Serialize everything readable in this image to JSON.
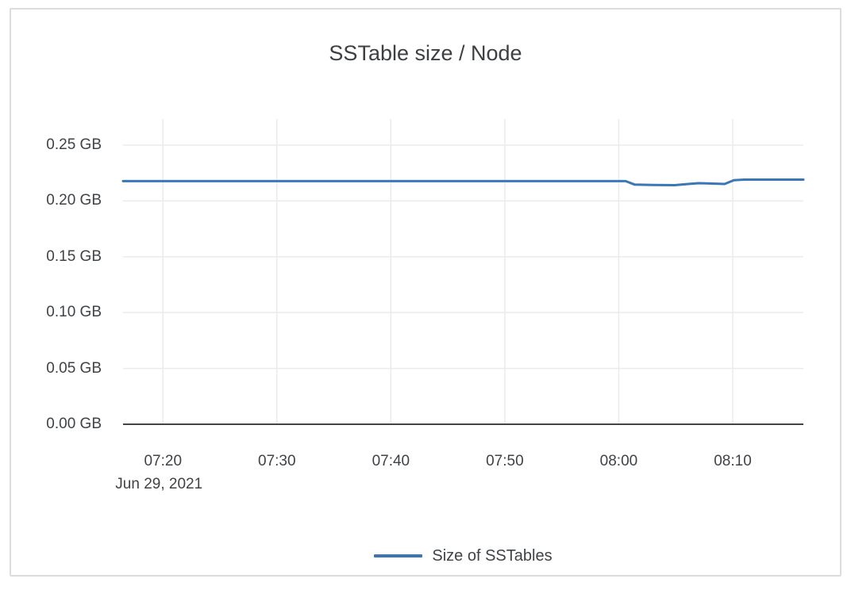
{
  "chart_data": {
    "type": "line",
    "title": "SSTable size / Node",
    "grid": true,
    "legend_position": "bottom-center",
    "x_axis": {
      "date_label": "Jun 29, 2021",
      "range_minutes": [
        436.5,
        496.2
      ],
      "ticks": [
        {
          "label": "07:20",
          "minutes": 440
        },
        {
          "label": "07:30",
          "minutes": 450
        },
        {
          "label": "07:40",
          "minutes": 460
        },
        {
          "label": "07:50",
          "minutes": 470
        },
        {
          "label": "08:00",
          "minutes": 480
        },
        {
          "label": "08:10",
          "minutes": 490
        }
      ]
    },
    "y_axis": {
      "unit": "GB",
      "range": [
        0,
        0.2734
      ],
      "ticks": [
        {
          "label": "0.00 GB",
          "value": 0.0
        },
        {
          "label": "0.05 GB",
          "value": 0.05
        },
        {
          "label": "0.10 GB",
          "value": 0.1
        },
        {
          "label": "0.15 GB",
          "value": 0.15
        },
        {
          "label": "0.20 GB",
          "value": 0.2
        },
        {
          "label": "0.25 GB",
          "value": 0.25
        }
      ]
    },
    "points_format": "[minutes_since_midnight, gigabytes]",
    "series": [
      {
        "name": "Size of SSTables",
        "color": "#3a77b4",
        "points": [
          [
            436.5,
            0.2177
          ],
          [
            450.0,
            0.2177
          ],
          [
            465.0,
            0.2177
          ],
          [
            480.6,
            0.2177
          ],
          [
            481.4,
            0.2146
          ],
          [
            483.0,
            0.2143
          ],
          [
            484.9,
            0.2141
          ],
          [
            486.0,
            0.2151
          ],
          [
            487.0,
            0.2159
          ],
          [
            488.0,
            0.2156
          ],
          [
            489.3,
            0.2152
          ],
          [
            490.1,
            0.2186
          ],
          [
            491.0,
            0.2191
          ],
          [
            496.2,
            0.2191
          ]
        ]
      }
    ]
  },
  "colors": {
    "grid": "#ebebeb",
    "axis": "#444444",
    "text": "#3f4347",
    "title": "#3c4043",
    "card_border": "#dcdcdc",
    "background": "#ffffff",
    "series_blue": "#3a77b4"
  }
}
